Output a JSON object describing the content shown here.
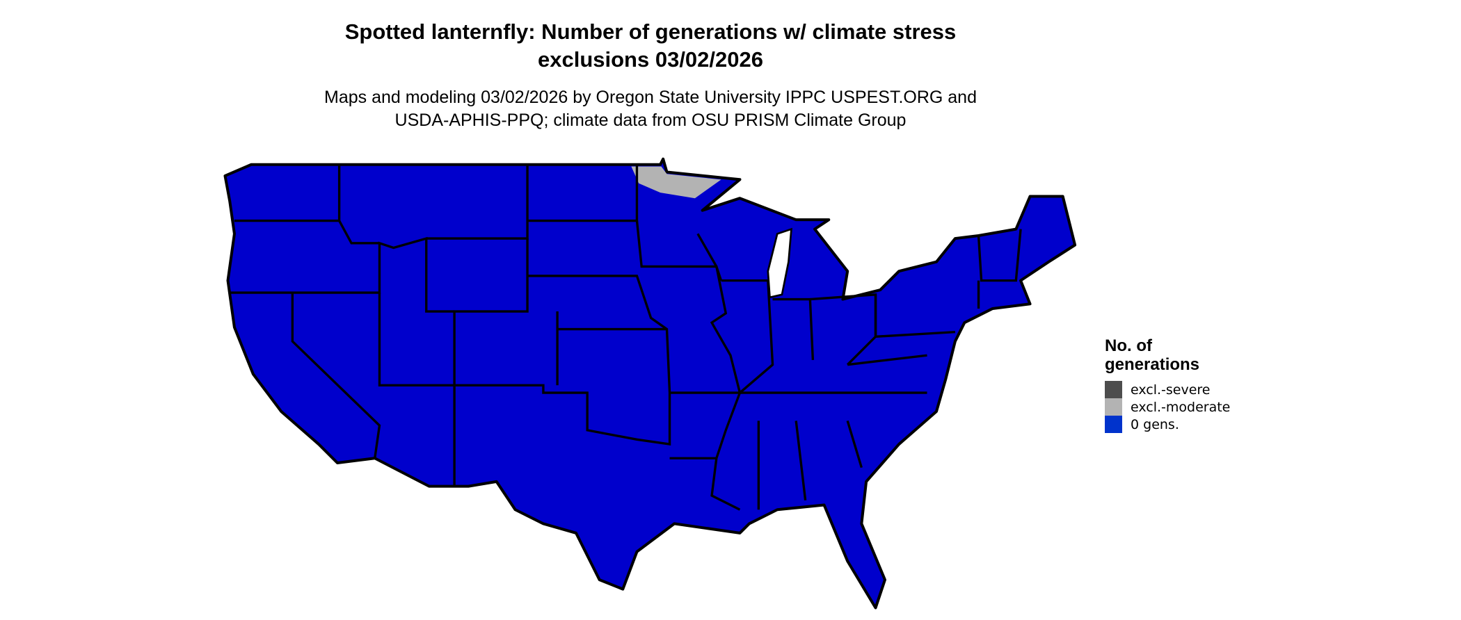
{
  "title_line1": "Spotted lanternfly: Number of generations w/ climate stress",
  "title_line2": "exclusions 03/02/2026",
  "subtitle_line1": "Maps and modeling 03/02/2026 by Oregon State University IPPC USPEST.ORG and",
  "subtitle_line2": "USDA-APHIS-PPQ; climate data from OSU PRISM Climate Group",
  "legend": {
    "title_line1": "No. of",
    "title_line2": "generations",
    "items": [
      {
        "label": "excl.-severe",
        "color": "#4d4d4d"
      },
      {
        "label": "excl.-moderate",
        "color": "#b3b3b3"
      },
      {
        "label": "0 gens.",
        "color": "#0033cc"
      }
    ]
  },
  "map": {
    "region": "Contiguous United States",
    "fill_color": "#0000cc",
    "moderate_exclusion_color": "#b3b3b3",
    "border_color": "#000000"
  }
}
